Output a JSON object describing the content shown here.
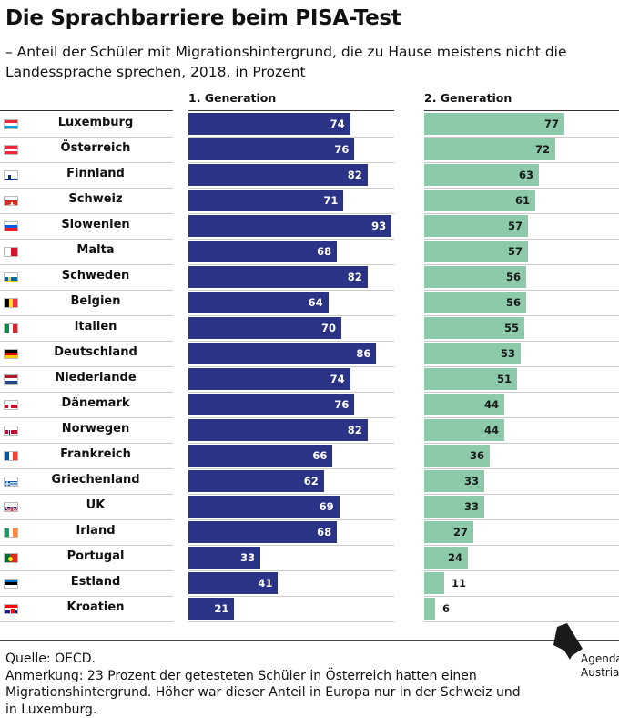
{
  "title": "Die Sprachbarriere beim PISA-Test",
  "subtitle": "– Anteil der Schüler mit Migrationshintergrund, die zu Hause meistens nicht die Landessprache sprechen, 2018, in Prozent",
  "footer": {
    "source": "Quelle: OECD.",
    "note": "Anmerkung: 23 Prozent der getesteten Schüler in Österreich hatten einen Migrations­hintergrund. Höher war dieser Anteil in Europa nur in der Schweiz und in Luxemburg."
  },
  "logo": {
    "line1": "Agenda",
    "line2": "Austria"
  },
  "colors": {
    "gen1": "#2a3386",
    "gen2": "#8ccaa9"
  },
  "chart_data": {
    "type": "bar",
    "orientation": "horizontal",
    "categories": [
      "Luxemburg",
      "Österreich",
      "Finnland",
      "Schweiz",
      "Slowenien",
      "Malta",
      "Schweden",
      "Belgien",
      "Italien",
      "Deutschland",
      "Niederlande",
      "Dänemark",
      "Norwegen",
      "Frankreich",
      "Griechenland",
      "UK",
      "Irland",
      "Portugal",
      "Estland",
      "Kroatien"
    ],
    "flags": [
      "luxembourg-flag-icon",
      "austria-flag-icon",
      "finland-flag-icon",
      "switzerland-flag-icon",
      "slovenia-flag-icon",
      "malta-flag-icon",
      "sweden-flag-icon",
      "belgium-flag-icon",
      "italy-flag-icon",
      "germany-flag-icon",
      "netherlands-flag-icon",
      "denmark-flag-icon",
      "norway-flag-icon",
      "france-flag-icon",
      "greece-flag-icon",
      "uk-flag-icon",
      "ireland-flag-icon",
      "portugal-flag-icon",
      "estonia-flag-icon",
      "croatia-flag-icon"
    ],
    "series": [
      {
        "name": "1. Generation",
        "values": [
          74,
          76,
          82,
          71,
          93,
          68,
          82,
          64,
          70,
          86,
          74,
          76,
          82,
          66,
          62,
          69,
          68,
          33,
          41,
          21
        ]
      },
      {
        "name": "2. Generation",
        "values": [
          77,
          72,
          63,
          61,
          57,
          57,
          56,
          56,
          55,
          53,
          51,
          44,
          44,
          36,
          33,
          33,
          27,
          24,
          11,
          6
        ]
      }
    ],
    "xlim": [
      0,
      100
    ],
    "grid": false,
    "legend": "column headers"
  }
}
